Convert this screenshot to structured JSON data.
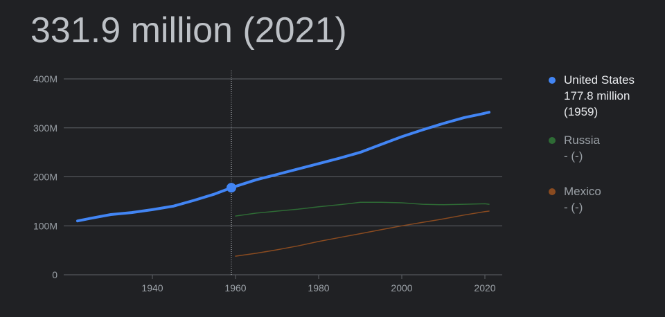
{
  "headline": "331.9 million (2021)",
  "colors": {
    "background": "#202124",
    "grid": "#5f6368",
    "tick_text": "#9aa0a6",
    "united_states": "#4285f4",
    "russia": "#2e6b35",
    "mexico": "#8a4b20"
  },
  "legend": [
    {
      "name": "United States",
      "value": "177.8 million",
      "year": "(1959)",
      "color": "#4285f4",
      "active": true
    },
    {
      "name": "Russia",
      "value": "- (-)",
      "year": "",
      "color": "#2e6b35",
      "active": false
    },
    {
      "name": "Mexico",
      "value": "- (-)",
      "year": "",
      "color": "#8a4b20",
      "active": false
    }
  ],
  "chart_data": {
    "type": "line",
    "title": "",
    "xlabel": "",
    "ylabel": "",
    "xlim": [
      1920,
      2024
    ],
    "ylim": [
      0,
      400
    ],
    "y_unit": "M",
    "x_ticks": [
      {
        "value": 1940,
        "label": "1940"
      },
      {
        "value": 1960,
        "label": "1960"
      },
      {
        "value": 1980,
        "label": "1980"
      },
      {
        "value": 2000,
        "label": "2000"
      },
      {
        "value": 2020,
        "label": "2020"
      }
    ],
    "y_ticks": [
      {
        "value": 0,
        "label": "0"
      },
      {
        "value": 100,
        "label": "100M"
      },
      {
        "value": 200,
        "label": "200M"
      },
      {
        "value": 300,
        "label": "300M"
      },
      {
        "value": 400,
        "label": "400M"
      }
    ],
    "highlight": {
      "series": "United States",
      "x": 1959,
      "y": 177.8
    },
    "series": [
      {
        "name": "United States",
        "points": [
          [
            1922,
            110
          ],
          [
            1925,
            115
          ],
          [
            1930,
            123
          ],
          [
            1935,
            127
          ],
          [
            1940,
            133
          ],
          [
            1945,
            140
          ],
          [
            1950,
            152
          ],
          [
            1955,
            165
          ],
          [
            1959,
            177.8
          ],
          [
            1965,
            194
          ],
          [
            1970,
            205
          ],
          [
            1975,
            216
          ],
          [
            1980,
            227
          ],
          [
            1985,
            238
          ],
          [
            1990,
            250
          ],
          [
            1995,
            266
          ],
          [
            2000,
            282
          ],
          [
            2005,
            296
          ],
          [
            2010,
            309
          ],
          [
            2015,
            321
          ],
          [
            2019,
            328
          ],
          [
            2021,
            331.9
          ]
        ]
      },
      {
        "name": "Russia",
        "points": [
          [
            1960,
            120
          ],
          [
            1965,
            126
          ],
          [
            1970,
            130
          ],
          [
            1975,
            134
          ],
          [
            1980,
            139
          ],
          [
            1985,
            143
          ],
          [
            1990,
            148
          ],
          [
            1995,
            148
          ],
          [
            2000,
            147
          ],
          [
            2005,
            144
          ],
          [
            2010,
            143
          ],
          [
            2015,
            144
          ],
          [
            2020,
            145
          ],
          [
            2021,
            144
          ]
        ]
      },
      {
        "name": "Mexico",
        "points": [
          [
            1960,
            38
          ],
          [
            1965,
            44
          ],
          [
            1970,
            51
          ],
          [
            1975,
            59
          ],
          [
            1980,
            68
          ],
          [
            1985,
            76
          ],
          [
            1990,
            84
          ],
          [
            1995,
            92
          ],
          [
            2000,
            100
          ],
          [
            2005,
            107
          ],
          [
            2010,
            114
          ],
          [
            2015,
            122
          ],
          [
            2020,
            129
          ],
          [
            2021,
            130
          ]
        ]
      }
    ]
  }
}
